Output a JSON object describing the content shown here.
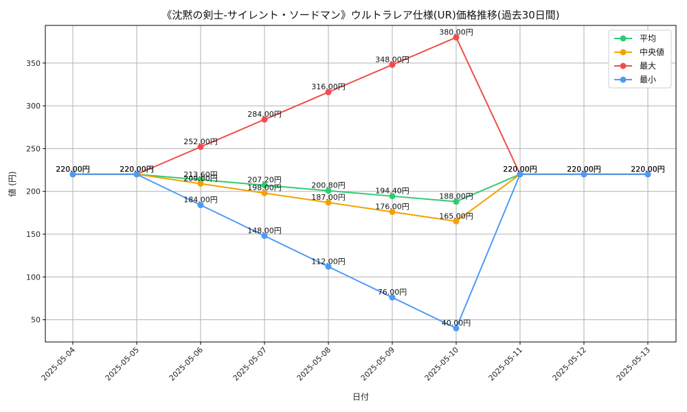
{
  "chart_data": {
    "type": "line",
    "title": "《沈黙の剣士-サイレント・ソードマン》ウルトラレア仕様(UR)価格推移(過去30日間)",
    "xlabel": "日付",
    "ylabel": "値 (円)",
    "ylim": [
      24,
      394
    ],
    "yticks": [
      50,
      100,
      150,
      200,
      250,
      300,
      350
    ],
    "grid": true,
    "legend_position": "top-right",
    "x": [
      "2025-05-04",
      "2025-05-05",
      "2025-05-06",
      "2025-05-07",
      "2025-05-08",
      "2025-05-09",
      "2025-05-10",
      "2025-05-11",
      "2025-05-12",
      "2025-05-13"
    ],
    "label_suffix": "円",
    "series": [
      {
        "name": "平均",
        "color": "#2ecc71",
        "values": [
          220,
          220,
          213.6,
          207.2,
          200.8,
          194.4,
          188,
          220,
          220,
          220
        ]
      },
      {
        "name": "中央値",
        "color": "#f5a000",
        "values": [
          220,
          220,
          209,
          198,
          187,
          176,
          165,
          220,
          220,
          220
        ]
      },
      {
        "name": "最大",
        "color": "#f24b4b",
        "values": [
          220,
          220,
          252,
          284,
          316,
          348,
          380,
          220,
          220,
          220
        ]
      },
      {
        "name": "最小",
        "color": "#4d9af5",
        "values": [
          220,
          220,
          184,
          148,
          112,
          76,
          40,
          220,
          220,
          220
        ]
      }
    ]
  }
}
